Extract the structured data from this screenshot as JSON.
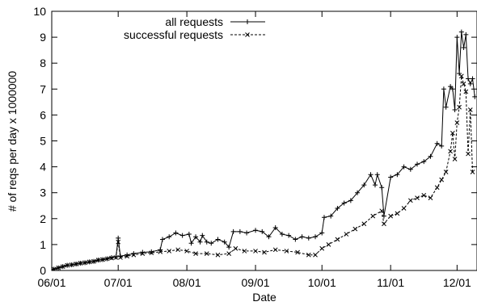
{
  "chart_data": {
    "type": "line",
    "title": "",
    "xlabel": "Date",
    "ylabel": "# of reqs per day x 1000000",
    "ylim": [
      0,
      10
    ],
    "yticks": [
      0,
      1,
      2,
      3,
      4,
      5,
      6,
      7,
      8,
      9,
      10
    ],
    "xlim": [
      "06/01",
      "12/10"
    ],
    "xticks": [
      "06/01",
      "07/01",
      "08/01",
      "09/01",
      "10/01",
      "11/01",
      "12/01"
    ],
    "grid": false,
    "legend_position": "top",
    "series": [
      {
        "name": "all requests",
        "line_style": "solid",
        "marker": "+",
        "color": "#000000",
        "points": [
          [
            "06/01",
            0.0
          ],
          [
            "06/02",
            0.05
          ],
          [
            "06/04",
            0.1
          ],
          [
            "06/06",
            0.15
          ],
          [
            "06/08",
            0.2
          ],
          [
            "06/10",
            0.22
          ],
          [
            "06/12",
            0.25
          ],
          [
            "06/14",
            0.28
          ],
          [
            "06/16",
            0.3
          ],
          [
            "06/18",
            0.33
          ],
          [
            "06/20",
            0.35
          ],
          [
            "06/22",
            0.4
          ],
          [
            "06/24",
            0.42
          ],
          [
            "06/26",
            0.45
          ],
          [
            "06/28",
            0.5
          ],
          [
            "06/30",
            0.52
          ],
          [
            "07/01",
            1.25
          ],
          [
            "07/02",
            0.55
          ],
          [
            "07/05",
            0.6
          ],
          [
            "07/08",
            0.65
          ],
          [
            "07/12",
            0.7
          ],
          [
            "07/16",
            0.72
          ],
          [
            "07/20",
            0.8
          ],
          [
            "07/21",
            1.2
          ],
          [
            "07/24",
            1.3
          ],
          [
            "07/27",
            1.45
          ],
          [
            "07/30",
            1.35
          ],
          [
            "08/02",
            1.4
          ],
          [
            "08/03",
            1.05
          ],
          [
            "08/05",
            1.3
          ],
          [
            "08/07",
            1.1
          ],
          [
            "08/08",
            1.35
          ],
          [
            "08/10",
            1.1
          ],
          [
            "08/12",
            1.05
          ],
          [
            "08/15",
            1.2
          ],
          [
            "08/18",
            1.1
          ],
          [
            "08/20",
            0.9
          ],
          [
            "08/22",
            1.5
          ],
          [
            "08/25",
            1.5
          ],
          [
            "08/28",
            1.45
          ],
          [
            "09/01",
            1.55
          ],
          [
            "09/04",
            1.5
          ],
          [
            "09/07",
            1.3
          ],
          [
            "09/10",
            1.65
          ],
          [
            "09/13",
            1.4
          ],
          [
            "09/16",
            1.35
          ],
          [
            "09/19",
            1.2
          ],
          [
            "09/22",
            1.3
          ],
          [
            "09/25",
            1.25
          ],
          [
            "09/28",
            1.3
          ],
          [
            "10/01",
            1.45
          ],
          [
            "10/02",
            2.05
          ],
          [
            "10/05",
            2.1
          ],
          [
            "10/08",
            2.4
          ],
          [
            "10/11",
            2.6
          ],
          [
            "10/14",
            2.7
          ],
          [
            "10/17",
            3.0
          ],
          [
            "10/20",
            3.3
          ],
          [
            "10/23",
            3.7
          ],
          [
            "10/25",
            3.3
          ],
          [
            "10/26",
            3.7
          ],
          [
            "10/28",
            3.2
          ],
          [
            "10/29",
            2.1
          ],
          [
            "11/01",
            3.6
          ],
          [
            "11/04",
            3.7
          ],
          [
            "11/07",
            4.0
          ],
          [
            "11/10",
            3.9
          ],
          [
            "11/13",
            4.1
          ],
          [
            "11/16",
            4.2
          ],
          [
            "11/19",
            4.4
          ],
          [
            "11/22",
            4.9
          ],
          [
            "11/24",
            4.8
          ],
          [
            "11/25",
            7.0
          ],
          [
            "11/26",
            6.3
          ],
          [
            "11/28",
            7.1
          ],
          [
            "11/29",
            7.0
          ],
          [
            "11/30",
            6.2
          ],
          [
            "12/01",
            9.0
          ],
          [
            "12/02",
            7.6
          ],
          [
            "12/03",
            9.2
          ],
          [
            "12/04",
            8.6
          ],
          [
            "12/05",
            9.1
          ],
          [
            "12/06",
            7.4
          ],
          [
            "12/07",
            7.2
          ],
          [
            "12/08",
            7.4
          ],
          [
            "12/09",
            6.7
          ]
        ]
      },
      {
        "name": "successful requests",
        "line_style": "dashed",
        "marker": "x",
        "color": "#000000",
        "points": [
          [
            "06/01",
            0.0
          ],
          [
            "06/02",
            0.05
          ],
          [
            "06/04",
            0.1
          ],
          [
            "06/06",
            0.15
          ],
          [
            "06/08",
            0.2
          ],
          [
            "06/10",
            0.22
          ],
          [
            "06/12",
            0.25
          ],
          [
            "06/14",
            0.28
          ],
          [
            "06/16",
            0.3
          ],
          [
            "06/18",
            0.33
          ],
          [
            "06/20",
            0.35
          ],
          [
            "06/22",
            0.4
          ],
          [
            "06/24",
            0.42
          ],
          [
            "06/26",
            0.45
          ],
          [
            "06/28",
            0.48
          ],
          [
            "06/30",
            0.5
          ],
          [
            "07/01",
            1.1
          ],
          [
            "07/02",
            0.5
          ],
          [
            "07/05",
            0.55
          ],
          [
            "07/08",
            0.6
          ],
          [
            "07/12",
            0.65
          ],
          [
            "07/16",
            0.68
          ],
          [
            "07/20",
            0.72
          ],
          [
            "07/24",
            0.75
          ],
          [
            "07/28",
            0.8
          ],
          [
            "08/01",
            0.75
          ],
          [
            "08/05",
            0.65
          ],
          [
            "08/10",
            0.65
          ],
          [
            "08/15",
            0.6
          ],
          [
            "08/20",
            0.65
          ],
          [
            "08/23",
            0.85
          ],
          [
            "08/27",
            0.75
          ],
          [
            "09/01",
            0.75
          ],
          [
            "09/05",
            0.7
          ],
          [
            "09/10",
            0.8
          ],
          [
            "09/15",
            0.75
          ],
          [
            "09/20",
            0.7
          ],
          [
            "09/25",
            0.6
          ],
          [
            "09/28",
            0.6
          ],
          [
            "10/01",
            0.85
          ],
          [
            "10/04",
            1.0
          ],
          [
            "10/08",
            1.2
          ],
          [
            "10/12",
            1.4
          ],
          [
            "10/16",
            1.6
          ],
          [
            "10/20",
            1.8
          ],
          [
            "10/24",
            2.1
          ],
          [
            "10/28",
            2.3
          ],
          [
            "10/29",
            1.8
          ],
          [
            "11/01",
            2.1
          ],
          [
            "11/04",
            2.2
          ],
          [
            "11/07",
            2.4
          ],
          [
            "11/10",
            2.7
          ],
          [
            "11/13",
            2.8
          ],
          [
            "11/16",
            2.9
          ],
          [
            "11/19",
            2.8
          ],
          [
            "11/22",
            3.2
          ],
          [
            "11/24",
            3.5
          ],
          [
            "11/26",
            3.8
          ],
          [
            "11/28",
            4.6
          ],
          [
            "11/29",
            5.3
          ],
          [
            "11/30",
            4.3
          ],
          [
            "12/01",
            5.7
          ],
          [
            "12/02",
            6.3
          ],
          [
            "12/03",
            7.5
          ],
          [
            "12/04",
            7.2
          ],
          [
            "12/05",
            6.9
          ],
          [
            "12/06",
            4.5
          ],
          [
            "12/07",
            6.2
          ],
          [
            "12/08",
            3.8
          ]
        ]
      }
    ]
  }
}
